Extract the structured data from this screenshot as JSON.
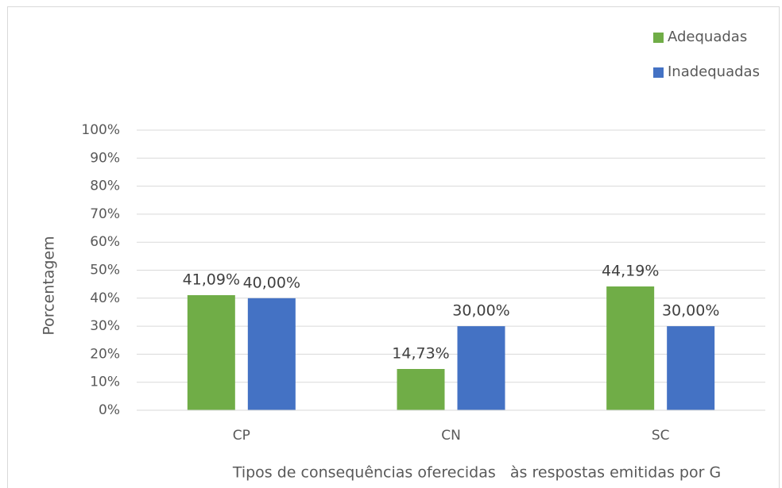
{
  "chart_data": {
    "type": "bar",
    "categories": [
      "CP",
      "CN",
      "SC"
    ],
    "series": [
      {
        "name": "Adequadas",
        "color": "#70ad47",
        "values": [
          41.09,
          14.73,
          44.19
        ],
        "value_labels": [
          "41,09%",
          "14,73%",
          "44,19%"
        ]
      },
      {
        "name": "Inadequadas",
        "color": "#4472c4",
        "values": [
          40.0,
          30.0,
          30.0
        ],
        "value_labels": [
          "40,00%",
          "30,00%",
          "30,00%"
        ]
      }
    ],
    "ylim": [
      0,
      100
    ],
    "yticks": [
      {
        "value": 0,
        "label": "0%"
      },
      {
        "value": 10,
        "label": "10%"
      },
      {
        "value": 20,
        "label": "20%"
      },
      {
        "value": 30,
        "label": "30%"
      },
      {
        "value": 40,
        "label": "40%"
      },
      {
        "value": 50,
        "label": "50%"
      },
      {
        "value": 60,
        "label": "60%"
      },
      {
        "value": 70,
        "label": "70%"
      },
      {
        "value": 80,
        "label": "80%"
      },
      {
        "value": 90,
        "label": "90%"
      },
      {
        "value": 100,
        "label": "100%"
      }
    ],
    "y_label": "Porcentagem",
    "x_label": "Tipos de consequências oferecidas   às respostas emitidas por G",
    "grid": true,
    "legend": "top-right"
  }
}
